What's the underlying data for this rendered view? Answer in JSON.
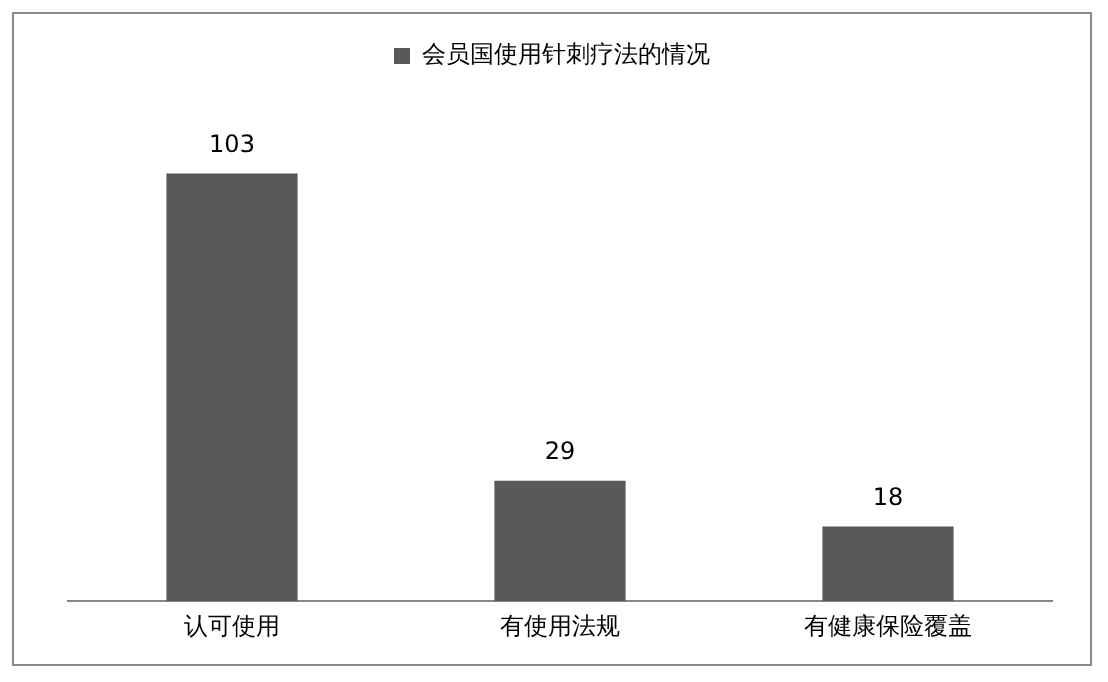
{
  "chart_data": {
    "type": "bar",
    "categories": [
      "认可使用",
      "有使用法规",
      "有健康保险覆盖"
    ],
    "series": [
      {
        "name": "会员国使用针刺疗法的情况",
        "color": "#595959",
        "values": [
          103,
          29,
          18
        ]
      }
    ],
    "data_labels": true,
    "legend": "top",
    "relative": false,
    "grid": false
  }
}
